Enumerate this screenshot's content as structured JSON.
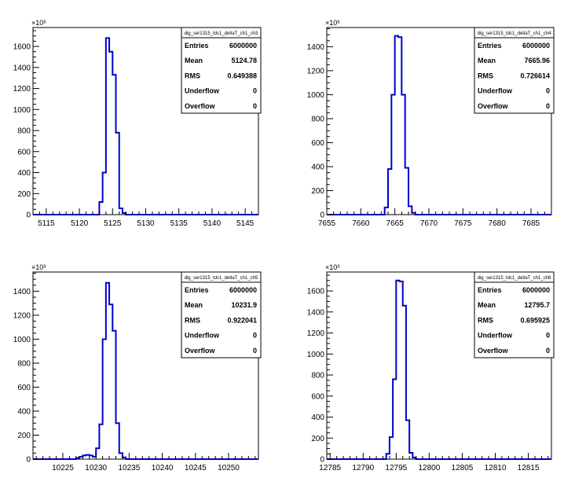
{
  "chart_data": [
    {
      "type": "histogram",
      "stats_title": "dig_ser1315_tdc1_deltaT_ch1_ch3",
      "stats": [
        {
          "label": "Entries",
          "value": "6000000"
        },
        {
          "label": "Mean",
          "value": "5124.78"
        },
        {
          "label": "RMS",
          "value": "0.649388"
        },
        {
          "label": "Underflow",
          "value": "0"
        },
        {
          "label": "Overflow",
          "value": "0"
        }
      ],
      "exponent_label": "×10³",
      "xlim": [
        5113,
        5147
      ],
      "ylim": [
        0,
        1780
      ],
      "xticks": [
        5115,
        5120,
        5125,
        5130,
        5135,
        5140,
        5145
      ],
      "yticks": [
        0,
        200,
        400,
        600,
        800,
        1000,
        1200,
        1400,
        1600
      ],
      "bins": [
        {
          "x0": 5123.0,
          "x1": 5123.5,
          "y": 120
        },
        {
          "x0": 5123.5,
          "x1": 5124.0,
          "y": 400
        },
        {
          "x0": 5124.0,
          "x1": 5124.5,
          "y": 1680
        },
        {
          "x0": 5124.5,
          "x1": 5125.0,
          "y": 1550
        },
        {
          "x0": 5125.0,
          "x1": 5125.5,
          "y": 1330
        },
        {
          "x0": 5125.5,
          "x1": 5126.0,
          "y": 780
        },
        {
          "x0": 5126.0,
          "x1": 5126.5,
          "y": 60
        },
        {
          "x0": 5126.5,
          "x1": 5127.0,
          "y": 15
        }
      ]
    },
    {
      "type": "histogram",
      "stats_title": "dig_ser1315_tdc1_deltaT_ch1_ch4",
      "stats": [
        {
          "label": "Entries",
          "value": "6000000"
        },
        {
          "label": "Mean",
          "value": "7665.96"
        },
        {
          "label": "RMS",
          "value": "0.726614"
        },
        {
          "label": "Underflow",
          "value": "0"
        },
        {
          "label": "Overflow",
          "value": "0"
        }
      ],
      "exponent_label": "×10³",
      "xlim": [
        7655,
        7688
      ],
      "ylim": [
        0,
        1560
      ],
      "xticks": [
        7655,
        7660,
        7665,
        7670,
        7675,
        7680,
        7685
      ],
      "yticks": [
        0,
        200,
        400,
        600,
        800,
        1000,
        1200,
        1400
      ],
      "bins": [
        {
          "x0": 7663.5,
          "x1": 7664.0,
          "y": 60
        },
        {
          "x0": 7664.0,
          "x1": 7664.5,
          "y": 380
        },
        {
          "x0": 7664.5,
          "x1": 7665.0,
          "y": 1000
        },
        {
          "x0": 7665.0,
          "x1": 7665.5,
          "y": 1490
        },
        {
          "x0": 7665.5,
          "x1": 7666.0,
          "y": 1480
        },
        {
          "x0": 7666.0,
          "x1": 7666.5,
          "y": 1000
        },
        {
          "x0": 7666.5,
          "x1": 7667.0,
          "y": 390
        },
        {
          "x0": 7667.0,
          "x1": 7667.5,
          "y": 70
        },
        {
          "x0": 7667.5,
          "x1": 7668.0,
          "y": 15
        }
      ]
    },
    {
      "type": "histogram",
      "stats_title": "dig_ser1315_tdc1_deltaT_ch1_ch5",
      "stats": [
        {
          "label": "Entries",
          "value": "6000000"
        },
        {
          "label": "Mean",
          "value": "10231.9"
        },
        {
          "label": "RMS",
          "value": "0.922041"
        },
        {
          "label": "Underflow",
          "value": "0"
        },
        {
          "label": "Overflow",
          "value": "0"
        }
      ],
      "exponent_label": "×10³",
      "xlim": [
        10220.5,
        10254.5
      ],
      "ylim": [
        0,
        1560
      ],
      "xticks": [
        10225,
        10230,
        10235,
        10240,
        10245,
        10250
      ],
      "yticks": [
        0,
        200,
        400,
        600,
        800,
        1000,
        1200,
        1400
      ],
      "bins": [
        {
          "x0": 10227.0,
          "x1": 10227.5,
          "y": 10
        },
        {
          "x0": 10227.5,
          "x1": 10228.0,
          "y": 20
        },
        {
          "x0": 10228.0,
          "x1": 10228.5,
          "y": 30
        },
        {
          "x0": 10228.5,
          "x1": 10229.0,
          "y": 35
        },
        {
          "x0": 10229.0,
          "x1": 10229.5,
          "y": 30
        },
        {
          "x0": 10229.5,
          "x1": 10230.0,
          "y": 20
        },
        {
          "x0": 10230.0,
          "x1": 10230.5,
          "y": 90
        },
        {
          "x0": 10230.5,
          "x1": 10231.0,
          "y": 290
        },
        {
          "x0": 10231.0,
          "x1": 10231.5,
          "y": 1000
        },
        {
          "x0": 10231.5,
          "x1": 10232.0,
          "y": 1470
        },
        {
          "x0": 10232.0,
          "x1": 10232.5,
          "y": 1290
        },
        {
          "x0": 10232.5,
          "x1": 10233.0,
          "y": 1070
        },
        {
          "x0": 10233.0,
          "x1": 10233.5,
          "y": 300
        },
        {
          "x0": 10233.5,
          "x1": 10234.0,
          "y": 50
        },
        {
          "x0": 10234.0,
          "x1": 10234.5,
          "y": 15
        }
      ]
    },
    {
      "type": "histogram",
      "stats_title": "dig_ser1315_tdc1_deltaT_ch1_ch6",
      "stats": [
        {
          "label": "Entries",
          "value": "6000000"
        },
        {
          "label": "Mean",
          "value": "12795.7"
        },
        {
          "label": "RMS",
          "value": "0.695925"
        },
        {
          "label": "Underflow",
          "value": "0"
        },
        {
          "label": "Overflow",
          "value": "0"
        }
      ],
      "exponent_label": "×10³",
      "xlim": [
        12784.5,
        12818.5
      ],
      "ylim": [
        0,
        1780
      ],
      "xticks": [
        12785,
        12790,
        12795,
        12800,
        12805,
        12810,
        12815
      ],
      "yticks": [
        0,
        200,
        400,
        600,
        800,
        1000,
        1200,
        1400,
        1600
      ],
      "bins": [
        {
          "x0": 12793.5,
          "x1": 12794.0,
          "y": 50
        },
        {
          "x0": 12794.0,
          "x1": 12794.5,
          "y": 210
        },
        {
          "x0": 12794.5,
          "x1": 12795.0,
          "y": 760
        },
        {
          "x0": 12795.0,
          "x1": 12795.5,
          "y": 1700
        },
        {
          "x0": 12795.5,
          "x1": 12796.0,
          "y": 1690
        },
        {
          "x0": 12796.0,
          "x1": 12796.5,
          "y": 1460
        },
        {
          "x0": 12796.5,
          "x1": 12797.0,
          "y": 370
        },
        {
          "x0": 12797.0,
          "x1": 12797.5,
          "y": 60
        },
        {
          "x0": 12797.5,
          "x1": 12798.0,
          "y": 15
        }
      ]
    }
  ],
  "colors": {
    "histogram_line": "#0000cc",
    "axis": "#000000",
    "background": "#ffffff"
  }
}
